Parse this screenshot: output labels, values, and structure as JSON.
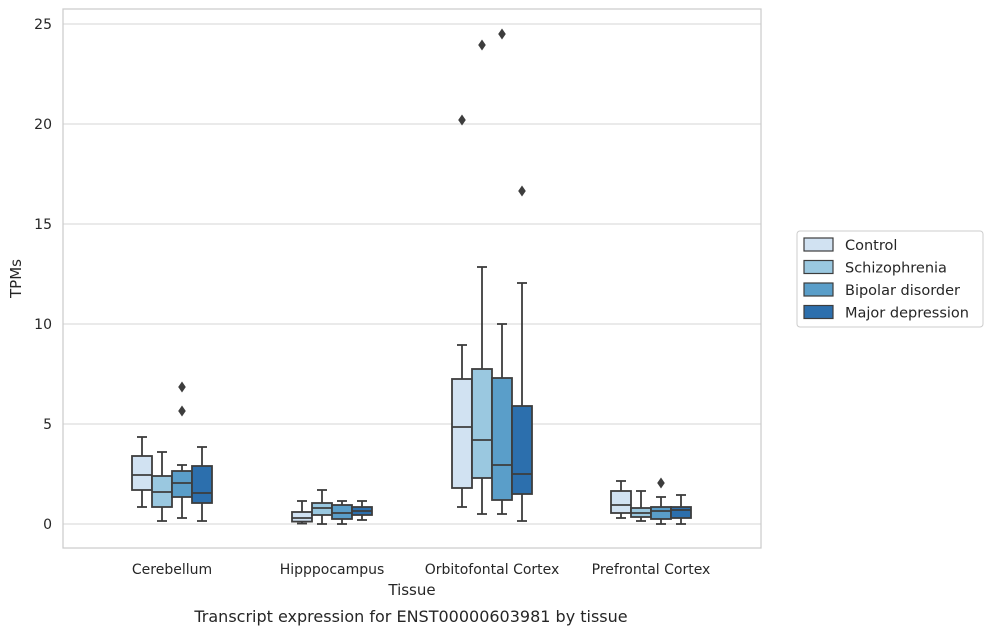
{
  "chart_data": {
    "type": "box",
    "caption": "Transcript expression for ENST00000603981 by tissue",
    "xlabel": "Tissue",
    "ylabel": "TPMs",
    "ylim": [
      -1.2,
      25.8
    ],
    "yticks": [
      0,
      5,
      10,
      15,
      20,
      25
    ],
    "grid": true,
    "legend_position": "right",
    "categories": [
      "Cerebellum",
      "Hipppocampus",
      "Orbitofontal Cortex",
      "Prefrontal Cortex"
    ],
    "series": [
      {
        "name": "Control",
        "color": "#d1e2f2",
        "boxes": [
          {
            "min": 0.85,
            "q1": 1.7,
            "median": 2.45,
            "q3": 3.4,
            "max": 4.35,
            "outliers": []
          },
          {
            "min": 0.02,
            "q1": 0.12,
            "median": 0.3,
            "q3": 0.6,
            "max": 1.15,
            "outliers": []
          },
          {
            "min": 0.85,
            "q1": 1.8,
            "median": 4.85,
            "q3": 7.25,
            "max": 8.95,
            "outliers": [
              20.2
            ]
          },
          {
            "min": 0.3,
            "q1": 0.55,
            "median": 0.95,
            "q3": 1.65,
            "max": 2.15,
            "outliers": []
          }
        ]
      },
      {
        "name": "Schizophrenia",
        "color": "#9ac8e0",
        "boxes": [
          {
            "min": 0.15,
            "q1": 0.85,
            "median": 1.6,
            "q3": 2.4,
            "max": 3.6,
            "outliers": []
          },
          {
            "min": 0.0,
            "q1": 0.45,
            "median": 0.8,
            "q3": 1.05,
            "max": 1.7,
            "outliers": []
          },
          {
            "min": 0.5,
            "q1": 2.3,
            "median": 4.2,
            "q3": 7.75,
            "max": 12.85,
            "outliers": [
              23.95
            ]
          },
          {
            "min": 0.15,
            "q1": 0.35,
            "median": 0.55,
            "q3": 0.8,
            "max": 1.65,
            "outliers": []
          }
        ]
      },
      {
        "name": "Bipolar disorder",
        "color": "#5a9ec9",
        "boxes": [
          {
            "min": 0.3,
            "q1": 1.35,
            "median": 2.05,
            "q3": 2.65,
            "max": 2.95,
            "outliers": [
              5.65,
              6.85
            ]
          },
          {
            "min": 0.0,
            "q1": 0.25,
            "median": 0.55,
            "q3": 0.95,
            "max": 1.15,
            "outliers": []
          },
          {
            "min": 0.5,
            "q1": 1.2,
            "median": 2.95,
            "q3": 7.3,
            "max": 10.0,
            "outliers": [
              24.5
            ]
          },
          {
            "min": 0.0,
            "q1": 0.25,
            "median": 0.65,
            "q3": 0.85,
            "max": 1.35,
            "outliers": [
              2.05
            ]
          }
        ]
      },
      {
        "name": "Major depression",
        "color": "#2c6fad",
        "boxes": [
          {
            "min": 0.15,
            "q1": 1.05,
            "median": 1.55,
            "q3": 2.9,
            "max": 3.85,
            "outliers": []
          },
          {
            "min": 0.2,
            "q1": 0.45,
            "median": 0.65,
            "q3": 0.85,
            "max": 1.15,
            "outliers": []
          },
          {
            "min": 0.15,
            "q1": 1.5,
            "median": 2.5,
            "q3": 5.9,
            "max": 12.05,
            "outliers": [
              16.65
            ]
          },
          {
            "min": 0.0,
            "q1": 0.3,
            "median": 0.7,
            "q3": 0.85,
            "max": 1.45,
            "outliers": []
          }
        ]
      }
    ]
  }
}
